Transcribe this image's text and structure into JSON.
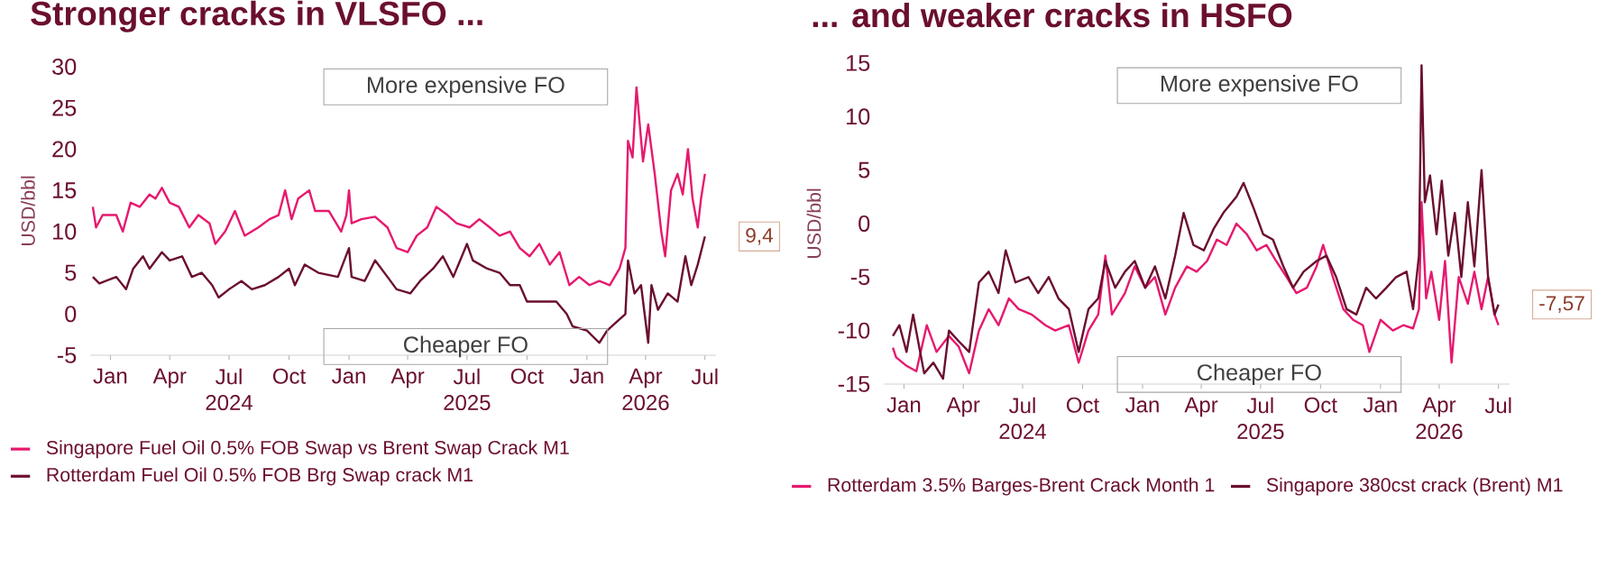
{
  "chart_data": [
    {
      "type": "line",
      "title": "Stronger cracks in VLSFO ...",
      "ylabel": "USD/bbl",
      "xlim": [
        "2023-12-01",
        "2026-07-18"
      ],
      "ylim": [
        -5,
        30
      ],
      "yticks": [
        -5,
        0,
        5,
        10,
        15,
        20,
        25,
        30
      ],
      "xticks": [
        {
          "value": "2024-01",
          "label": "Jan"
        },
        {
          "value": "2024-04",
          "label": "Apr"
        },
        {
          "value": "2024-07",
          "label": "Jul"
        },
        {
          "value": "2024-10",
          "label": "Oct"
        },
        {
          "value": "2025-01",
          "label": "Jan"
        },
        {
          "value": "2025-04",
          "label": "Apr"
        },
        {
          "value": "2025-07",
          "label": "Jul"
        },
        {
          "value": "2025-10",
          "label": "Oct"
        },
        {
          "value": "2026-01",
          "label": "Jan"
        },
        {
          "value": "2026-04",
          "label": "Apr"
        },
        {
          "value": "2026-07",
          "label": "Jul"
        }
      ],
      "legend": "bottom",
      "grid": false,
      "marker": "none",
      "line_style": "solid",
      "annotations": [
        "More expensive FO",
        "Cheaper FO",
        {
          "text": "9,4",
          "x": "2026-07-01",
          "y": 9.4
        },
        "2024",
        "2025",
        "2026"
      ],
      "series": [
        {
          "name": "Singapore Fuel Oil 0.5% FOB Swap vs Brent Swap Crack M1",
          "color": "#e6196e",
          "x": [
            "2023-12-05",
            "2023-12-10",
            "2023-12-20",
            "2024-01-10",
            "2024-01-20",
            "2024-02-01",
            "2024-02-15",
            "2024-03-01",
            "2024-03-10",
            "2024-03-20",
            "2024-04-01",
            "2024-04-15",
            "2024-05-01",
            "2024-05-15",
            "2024-06-01",
            "2024-06-10",
            "2024-06-25",
            "2024-07-10",
            "2024-07-25",
            "2024-08-15",
            "2024-09-01",
            "2024-09-15",
            "2024-09-25",
            "2024-10-05",
            "2024-10-15",
            "2024-11-01",
            "2024-11-10",
            "2024-12-01",
            "2024-12-20",
            "2024-12-28",
            "2025-01-01",
            "2025-01-05",
            "2025-01-20",
            "2025-02-10",
            "2025-03-01",
            "2025-03-15",
            "2025-04-01",
            "2025-04-15",
            "2025-05-01",
            "2025-05-15",
            "2025-06-01",
            "2025-06-15",
            "2025-07-05",
            "2025-07-20",
            "2025-08-05",
            "2025-08-20",
            "2025-09-05",
            "2025-09-20",
            "2025-10-05",
            "2025-10-20",
            "2025-11-05",
            "2025-11-20",
            "2025-12-05",
            "2025-12-20",
            "2026-01-05",
            "2026-01-20",
            "2026-02-05",
            "2026-02-20",
            "2026-03-01",
            "2026-03-05",
            "2026-03-12",
            "2026-03-18",
            "2026-03-28",
            "2026-04-05",
            "2026-04-15",
            "2026-04-25",
            "2026-05-01",
            "2026-05-10",
            "2026-05-20",
            "2026-05-28",
            "2026-06-05",
            "2026-06-12",
            "2026-06-20",
            "2026-06-25",
            "2026-07-01"
          ],
          "values": [
            13,
            10.5,
            12,
            12,
            10,
            13.5,
            13,
            14.5,
            14,
            15.3,
            13.5,
            13,
            10.5,
            12,
            11,
            8.5,
            10,
            12.5,
            9.5,
            10.5,
            11.5,
            12,
            15,
            11.5,
            14,
            15,
            12.5,
            12.5,
            10,
            12,
            15,
            11,
            11.5,
            11.8,
            10.5,
            8,
            7.5,
            9.5,
            10.5,
            13,
            12,
            11,
            10.5,
            11.5,
            10.5,
            9.5,
            10,
            8,
            7,
            8.5,
            6,
            7.5,
            3.5,
            4.5,
            3.5,
            4,
            3.5,
            5.5,
            8,
            21,
            19,
            27.5,
            18.5,
            23,
            17,
            10,
            7,
            15,
            17,
            14.5,
            20,
            14,
            10.5,
            14,
            17
          ]
        },
        {
          "name": "Rotterdam Fuel Oil 0.5% FOB Brg Swap crack M1",
          "color": "#6b0f2e",
          "x": [
            "2023-12-05",
            "2023-12-15",
            "2024-01-10",
            "2024-01-25",
            "2024-02-05",
            "2024-02-20",
            "2024-03-01",
            "2024-03-20",
            "2024-04-01",
            "2024-04-20",
            "2024-05-05",
            "2024-05-20",
            "2024-06-05",
            "2024-06-15",
            "2024-07-01",
            "2024-07-20",
            "2024-08-05",
            "2024-08-25",
            "2024-09-15",
            "2024-10-01",
            "2024-10-10",
            "2024-10-25",
            "2024-11-15",
            "2024-12-15",
            "2025-01-01",
            "2025-01-05",
            "2025-01-25",
            "2025-02-10",
            "2025-03-01",
            "2025-03-15",
            "2025-04-05",
            "2025-04-20",
            "2025-05-10",
            "2025-05-25",
            "2025-06-10",
            "2025-07-01",
            "2025-07-10",
            "2025-08-01",
            "2025-08-20",
            "2025-09-05",
            "2025-09-20",
            "2025-10-01",
            "2025-10-20",
            "2025-11-15",
            "2025-12-01",
            "2025-12-10",
            "2026-01-01",
            "2026-01-20",
            "2026-02-01",
            "2026-02-15",
            "2026-03-01",
            "2026-03-05",
            "2026-03-15",
            "2026-03-25",
            "2026-04-05",
            "2026-04-10",
            "2026-04-20",
            "2026-05-05",
            "2026-05-20",
            "2026-06-01",
            "2026-06-10",
            "2026-06-20",
            "2026-07-01"
          ],
          "values": [
            4.5,
            3.7,
            4.5,
            3,
            5.5,
            7,
            5.5,
            7.5,
            6.5,
            7,
            4.5,
            5,
            3.5,
            2,
            3,
            4,
            3,
            3.5,
            4.5,
            5.5,
            3.5,
            6,
            5,
            4.5,
            8,
            4.5,
            4,
            6.5,
            4.5,
            3,
            2.5,
            4,
            5.5,
            7,
            4.5,
            8.5,
            6.5,
            5.5,
            5,
            3.5,
            3.5,
            1.5,
            1.5,
            1.5,
            0,
            -1.5,
            -2,
            -3.5,
            -2,
            -1,
            0,
            6.5,
            2.5,
            3.5,
            -3.5,
            3.5,
            0.5,
            2.5,
            1.5,
            7,
            3.5,
            6,
            9.4
          ]
        }
      ]
    },
    {
      "type": "line",
      "title": "... and weaker cracks in HSFO",
      "ylabel": "USD/bbl",
      "xlim": [
        "2023-12-01",
        "2026-07-18"
      ],
      "ylim": [
        -15,
        15
      ],
      "yticks": [
        -15,
        -10,
        -5,
        0,
        5,
        10,
        15
      ],
      "xticks": [
        {
          "value": "2024-01",
          "label": "Jan"
        },
        {
          "value": "2024-04",
          "label": "Apr"
        },
        {
          "value": "2024-07",
          "label": "Jul"
        },
        {
          "value": "2024-10",
          "label": "Oct"
        },
        {
          "value": "2025-01",
          "label": "Jan"
        },
        {
          "value": "2025-04",
          "label": "Apr"
        },
        {
          "value": "2025-07",
          "label": "Jul"
        },
        {
          "value": "2025-10",
          "label": "Oct"
        },
        {
          "value": "2026-01",
          "label": "Jan"
        },
        {
          "value": "2026-04",
          "label": "Apr"
        },
        {
          "value": "2026-07",
          "label": "Jul"
        }
      ],
      "legend": "bottom",
      "grid": false,
      "marker": "none",
      "line_style": "solid",
      "annotations": [
        "More expensive FO",
        "Cheaper FO",
        {
          "text": "-7,57",
          "x": "2026-07-01",
          "y": -7.57
        },
        "2024",
        "2025",
        "2026"
      ],
      "series": [
        {
          "name": "Rotterdam 3.5% Barges-Brent Crack Month 1",
          "color": "#e6196e",
          "x": [
            "2023-12-15",
            "2023-12-20",
            "2024-01-05",
            "2024-01-20",
            "2024-02-05",
            "2024-02-20",
            "2024-03-10",
            "2024-03-25",
            "2024-04-10",
            "2024-04-25",
            "2024-05-10",
            "2024-05-25",
            "2024-06-10",
            "2024-06-25",
            "2024-07-15",
            "2024-08-05",
            "2024-08-20",
            "2024-09-10",
            "2024-09-25",
            "2024-10-10",
            "2024-10-25",
            "2024-11-05",
            "2024-11-15",
            "2024-12-05",
            "2024-12-20",
            "2025-01-05",
            "2025-01-20",
            "2025-02-05",
            "2025-02-20",
            "2025-03-10",
            "2025-03-25",
            "2025-04-10",
            "2025-04-25",
            "2025-05-10",
            "2025-05-25",
            "2025-06-10",
            "2025-06-25",
            "2025-07-10",
            "2025-07-25",
            "2025-08-10",
            "2025-08-25",
            "2025-09-10",
            "2025-09-25",
            "2025-10-05",
            "2025-10-20",
            "2025-11-05",
            "2025-11-20",
            "2025-12-05",
            "2025-12-15",
            "2026-01-01",
            "2026-01-20",
            "2026-02-05",
            "2026-02-20",
            "2026-03-01",
            "2026-03-05",
            "2026-03-12",
            "2026-03-20",
            "2026-04-01",
            "2026-04-10",
            "2026-04-20",
            "2026-05-01",
            "2026-05-15",
            "2026-05-25",
            "2026-06-05",
            "2026-06-15",
            "2026-06-25",
            "2026-07-01"
          ],
          "values": [
            -11.6,
            -12.5,
            -13.3,
            -13.8,
            -9.5,
            -12,
            -10.5,
            -11.5,
            -14,
            -10,
            -8,
            -9.5,
            -7,
            -8,
            -8.5,
            -9.5,
            -10,
            -9.5,
            -13,
            -10,
            -8.5,
            -3,
            -8.5,
            -6.5,
            -4,
            -6,
            -5,
            -8.5,
            -6,
            -4,
            -4.5,
            -3.5,
            -1.5,
            -2,
            0,
            -1,
            -2.5,
            -2,
            -3.5,
            -5,
            -6.5,
            -6,
            -4,
            -2,
            -5,
            -8,
            -9,
            -9.5,
            -12,
            -9,
            -10,
            -9.5,
            -9.8,
            -8,
            2,
            -7,
            -4.5,
            -9,
            -3.5,
            -13,
            -5,
            -7.5,
            -4.5,
            -8,
            -5,
            -8.5,
            -9.5
          ]
        },
        {
          "name": "Singapore 380cst crack (Brent) M1",
          "color": "#6b0f2e",
          "x": [
            "2023-12-15",
            "2023-12-25",
            "2024-01-05",
            "2024-01-15",
            "2024-02-01",
            "2024-02-15",
            "2024-03-01",
            "2024-03-10",
            "2024-03-25",
            "2024-04-10",
            "2024-04-25",
            "2024-05-10",
            "2024-05-25",
            "2024-06-05",
            "2024-06-20",
            "2024-07-10",
            "2024-07-25",
            "2024-08-10",
            "2024-08-25",
            "2024-09-10",
            "2024-09-25",
            "2024-10-10",
            "2024-10-25",
            "2024-11-05",
            "2024-11-20",
            "2024-12-05",
            "2024-12-20",
            "2025-01-05",
            "2025-01-20",
            "2025-02-05",
            "2025-02-20",
            "2025-03-05",
            "2025-03-20",
            "2025-04-05",
            "2025-04-20",
            "2025-05-05",
            "2025-05-25",
            "2025-06-05",
            "2025-06-20",
            "2025-07-05",
            "2025-07-20",
            "2025-08-05",
            "2025-08-20",
            "2025-09-05",
            "2025-09-25",
            "2025-10-10",
            "2025-10-25",
            "2025-11-10",
            "2025-11-25",
            "2025-12-10",
            "2025-12-25",
            "2026-01-10",
            "2026-01-25",
            "2026-02-10",
            "2026-02-20",
            "2026-03-01",
            "2026-03-05",
            "2026-03-10",
            "2026-03-18",
            "2026-03-28",
            "2026-04-05",
            "2026-04-15",
            "2026-04-25",
            "2026-05-05",
            "2026-05-15",
            "2026-05-25",
            "2026-06-05",
            "2026-06-15",
            "2026-06-25",
            "2026-07-01"
          ],
          "values": [
            -10.5,
            -9.5,
            -12,
            -8.5,
            -14,
            -13,
            -14.5,
            -10,
            -11,
            -12,
            -5.5,
            -4.5,
            -6.5,
            -2.5,
            -5.5,
            -5,
            -6.5,
            -5,
            -7,
            -8,
            -12,
            -8,
            -7,
            -3.5,
            -6,
            -4.5,
            -3.5,
            -6,
            -4,
            -7,
            -3,
            1,
            -2,
            -2.5,
            -0.5,
            1,
            2.5,
            3.8,
            1.5,
            -1,
            -1.5,
            -4,
            -6,
            -4.5,
            -3.5,
            -3,
            -5,
            -8,
            -8.5,
            -6,
            -7,
            -6,
            -5,
            -4.5,
            -8,
            -3,
            14.8,
            2,
            4.5,
            -1,
            4,
            -3,
            1,
            -5,
            2,
            -4,
            5,
            -5,
            -8.5,
            -7.57
          ]
        }
      ]
    }
  ]
}
